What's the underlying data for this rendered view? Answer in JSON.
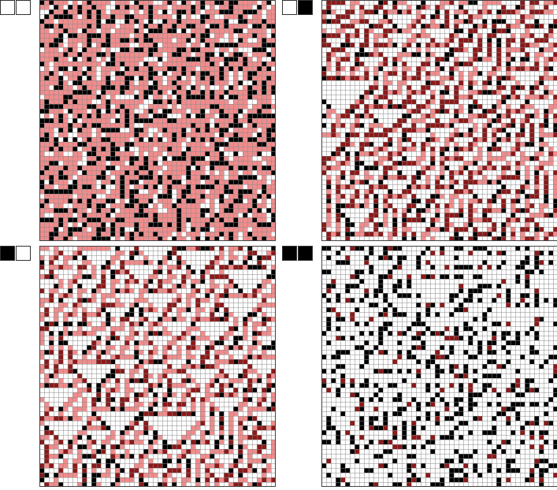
{
  "figure": {
    "grid_columns": 50,
    "grid_rows": 51,
    "colors": {
      "background": "#ffffff",
      "grid_line": "#8a8a8a",
      "frame": "#444444",
      "on_cell": "#000000",
      "off_cell": "#ffffff",
      "salmon": "#f08c8c",
      "dark_red": "#8b1a1a"
    },
    "panels": [
      {
        "id": "p0",
        "legend": [
          0,
          0
        ],
        "fill_mode": "salmon-background"
      },
      {
        "id": "p1",
        "legend": [
          0,
          1
        ],
        "fill_mode": "red-triangles"
      },
      {
        "id": "p2",
        "legend": [
          1,
          0
        ],
        "fill_mode": "mixed-triangles"
      },
      {
        "id": "p3",
        "legend": [
          1,
          1
        ],
        "fill_mode": "sparse-black"
      }
    ]
  }
}
